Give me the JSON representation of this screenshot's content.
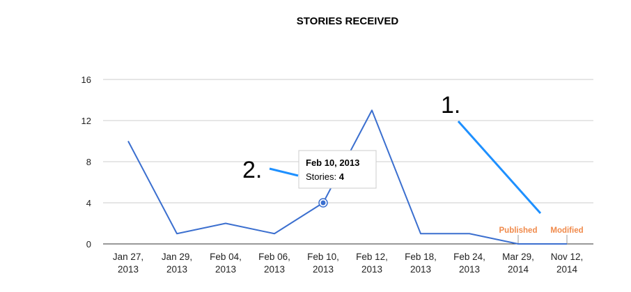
{
  "chart_data": {
    "type": "line",
    "title": "STORIES RECEIVED",
    "xlabel": "",
    "ylabel": "",
    "categories": [
      [
        "Jan 27,",
        "2013"
      ],
      [
        "Jan 29,",
        "2013"
      ],
      [
        "Feb 04,",
        "2013"
      ],
      [
        "Feb 06,",
        "2013"
      ],
      [
        "Feb 10,",
        "2013"
      ],
      [
        "Feb 12,",
        "2013"
      ],
      [
        "Feb 18,",
        "2013"
      ],
      [
        "Feb 24,",
        "2013"
      ],
      [
        "Mar 29,",
        "2014"
      ],
      [
        "Nov 12,",
        "2014"
      ]
    ],
    "series": [
      {
        "name": "Stories",
        "values": [
          10,
          1,
          2,
          1,
          4,
          13,
          1,
          1,
          0,
          0
        ],
        "color": "#3b6fcf"
      }
    ],
    "ylim": [
      0,
      16
    ],
    "yticks": [
      0,
      4,
      8,
      12,
      16
    ],
    "grid": true,
    "annotations": [
      {
        "label": "Published",
        "category_index": 8,
        "color": "#f08a4b"
      },
      {
        "label": "Modified",
        "category_index": 9,
        "color": "#f08a4b"
      }
    ],
    "tooltip": {
      "category_index": 4,
      "date": "Feb 10, 2013",
      "label": "Stories: ",
      "value": "4"
    }
  },
  "callouts": [
    {
      "label": "1.",
      "color": "#1e90ff"
    },
    {
      "label": "2.",
      "color": "#1e90ff"
    }
  ]
}
